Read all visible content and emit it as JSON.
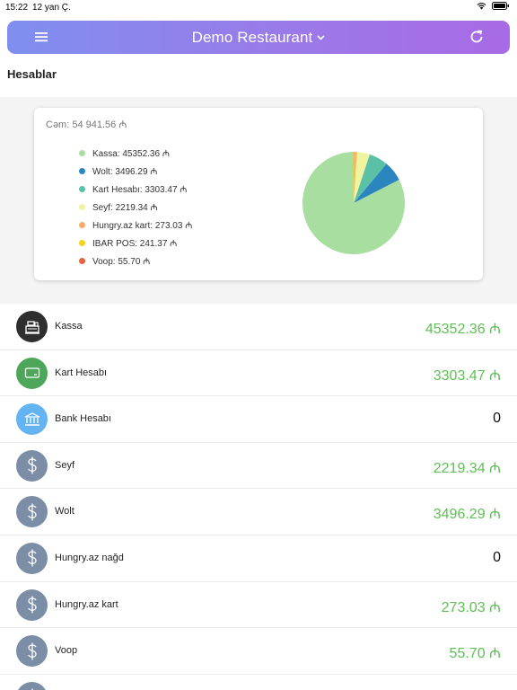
{
  "status": {
    "time": "15:22",
    "date": "12 yan Ç."
  },
  "header": {
    "title": "Demo Restaurant"
  },
  "page": {
    "section_title": "Hesablar"
  },
  "summary": {
    "total": "Cəm: 54 941.56 ₼",
    "legend": [
      {
        "label": "Kassa: 45352.36 ₼",
        "color": "#a8dea0"
      },
      {
        "label": "Wolt: 3496.29 ₼",
        "color": "#2b86c0"
      },
      {
        "label": "Kart Hesabı: 3303.47 ₼",
        "color": "#5bc1a6"
      },
      {
        "label": "Seyf: 2219.34 ₼",
        "color": "#eef4a0"
      },
      {
        "label": "Hungry.az kart: 273.03 ₼",
        "color": "#f6ab6c"
      },
      {
        "label": "IBAR POS: 241.37 ₼",
        "color": "#f2d41a"
      },
      {
        "label": "Voop: 55.70 ₼",
        "color": "#e8623f"
      }
    ]
  },
  "chart_data": {
    "type": "pie",
    "categories": [
      "Kassa",
      "Wolt",
      "Kart Hesabı",
      "Seyf",
      "Hungry.az kart",
      "IBAR POS",
      "Voop"
    ],
    "values": [
      45352.36,
      3496.29,
      3303.47,
      2219.34,
      273.03,
      241.37,
      55.7
    ],
    "colors": [
      "#a8dea0",
      "#2b86c0",
      "#5bc1a6",
      "#eef4a0",
      "#f6ab6c",
      "#f2d41a",
      "#e8623f"
    ]
  },
  "accounts": [
    {
      "name": "Kassa",
      "amount": "45352.36 ₼",
      "icon": "cash-register-icon",
      "icon_bg": "#2e2e2e",
      "positive": true
    },
    {
      "name": "Kart Hesabı",
      "amount": "3303.47 ₼",
      "icon": "credit-card-icon",
      "icon_bg": "#4ea65a",
      "positive": true
    },
    {
      "name": "Bank Hesabı",
      "amount": "0",
      "icon": "bank-icon",
      "icon_bg": "#64b3f2",
      "positive": false
    },
    {
      "name": "Seyf",
      "amount": "2219.34 ₼",
      "icon": "dollar-icon",
      "icon_bg": "#7b8ea6",
      "positive": true
    },
    {
      "name": "Wolt",
      "amount": "3496.29 ₼",
      "icon": "dollar-icon",
      "icon_bg": "#7b8ea6",
      "positive": true
    },
    {
      "name": "Hungry.az nağd",
      "amount": "0",
      "icon": "dollar-icon",
      "icon_bg": "#7b8ea6",
      "positive": false
    },
    {
      "name": "Hungry.az kart",
      "amount": "273.03 ₼",
      "icon": "dollar-icon",
      "icon_bg": "#7b8ea6",
      "positive": true
    },
    {
      "name": "Voop",
      "amount": "55.70 ₼",
      "icon": "dollar-icon",
      "icon_bg": "#7b8ea6",
      "positive": true
    },
    {
      "name": "",
      "amount": "",
      "icon": "dollar-icon",
      "icon_bg": "#7b8ea6",
      "positive": true
    }
  ],
  "theme": {
    "positive_color": "#5fbe55",
    "header_gradient_start": "#7f8ff0",
    "header_gradient_end": "#a86ae6"
  }
}
